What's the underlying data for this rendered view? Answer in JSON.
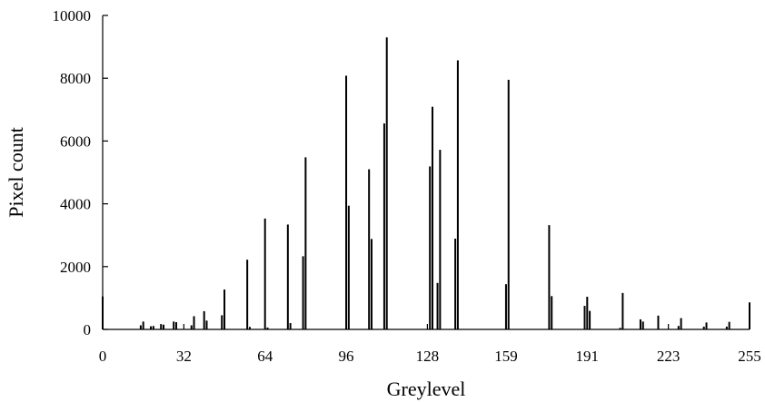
{
  "chart_data": {
    "type": "bar",
    "title": "",
    "xlabel": "Greylevel",
    "ylabel": "Pixel count",
    "xlim": [
      0,
      255
    ],
    "ylim": [
      0,
      10000
    ],
    "x_ticks": [
      0,
      32,
      64,
      96,
      128,
      159,
      191,
      223,
      255
    ],
    "y_ticks": [
      0,
      2000,
      4000,
      6000,
      8000,
      10000
    ],
    "grid": false,
    "x": [
      0,
      15,
      16,
      19,
      20,
      23,
      24,
      28,
      29,
      35,
      36,
      40,
      41,
      47,
      48,
      57,
      58,
      64,
      65,
      73,
      74,
      79,
      80,
      96,
      97,
      105,
      106,
      111,
      112,
      129,
      130,
      132,
      133,
      139,
      140,
      159,
      160,
      176,
      177,
      190,
      191,
      192,
      204,
      205,
      212,
      213,
      219,
      227,
      228,
      237,
      238,
      246,
      247,
      255
    ],
    "values": [
      1050,
      130,
      250,
      100,
      110,
      170,
      150,
      250,
      230,
      130,
      420,
      580,
      280,
      450,
      1270,
      2220,
      80,
      3530,
      60,
      3340,
      200,
      2330,
      5480,
      8080,
      3940,
      5100,
      2880,
      6560,
      9300,
      5190,
      7090,
      1480,
      5720,
      2890,
      8570,
      1440,
      7950,
      3320,
      1060,
      750,
      1040,
      590,
      50,
      1160,
      320,
      250,
      440,
      110,
      360,
      90,
      220,
      90,
      240,
      860
    ]
  }
}
